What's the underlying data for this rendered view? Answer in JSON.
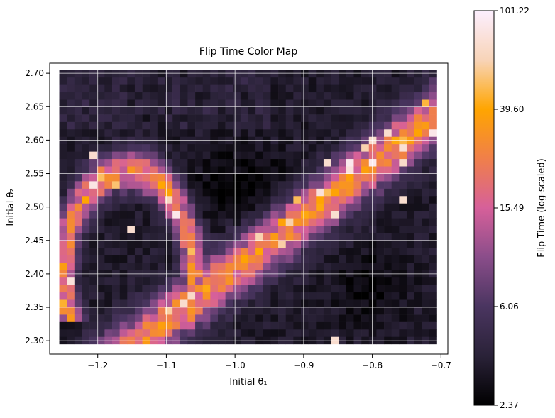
{
  "chart_data": {
    "type": "heatmap",
    "title": "Flip Time Color Map",
    "xlabel": "Initial θ₁",
    "ylabel": "Initial θ₂",
    "xlim": [
      -1.27,
      -0.69
    ],
    "ylim": [
      2.28,
      2.715
    ],
    "x_range": [
      -1.256,
      -0.706
    ],
    "y_range": [
      2.295,
      2.705
    ],
    "grid": true,
    "grid_resolution": [
      50,
      37
    ],
    "xticks": [
      "−1.2",
      "−1.1",
      "−1.0",
      "−0.9",
      "−0.8",
      "−0.7"
    ],
    "xtick_values": [
      -1.2,
      -1.1,
      -1.0,
      -0.9,
      -0.8,
      -0.7
    ],
    "yticks": [
      "2.30",
      "2.35",
      "2.40",
      "2.45",
      "2.50",
      "2.55",
      "2.60",
      "2.65",
      "2.70"
    ],
    "ytick_values": [
      2.3,
      2.35,
      2.4,
      2.45,
      2.5,
      2.55,
      2.6,
      2.65,
      2.7
    ],
    "colorbar": {
      "label": "Flip Time (log-scaled)",
      "scale": "log",
      "min": 2.37,
      "max": 101.22,
      "ticks": [
        "101.22",
        "39.60",
        "15.49",
        "6.06",
        "2.37"
      ],
      "tick_values": [
        101.22,
        39.6,
        15.49,
        6.06,
        2.37
      ],
      "colormap": [
        "#000000",
        "#2a2238",
        "#4a3560",
        "#8a4d8a",
        "#d6609a",
        "#f07f4a",
        "#ffa500",
        "#f8d4b8",
        "#fcefff"
      ]
    },
    "features": [
      {
        "description": "low-value background region",
        "value_approx": 3.0
      },
      {
        "description": "diagonal band of high flip times running from (-1.1, 2.33) to (-0.72, 2.62)",
        "value_approx": 15
      },
      {
        "description": "arc of high flip times from (-1.25, 2.38) through (-1.15, 2.55) to (-1.07, 2.40)",
        "value_approx": 15
      },
      {
        "description": "scattered orange/white hotspots along the bands",
        "value_approx": 50
      }
    ]
  }
}
